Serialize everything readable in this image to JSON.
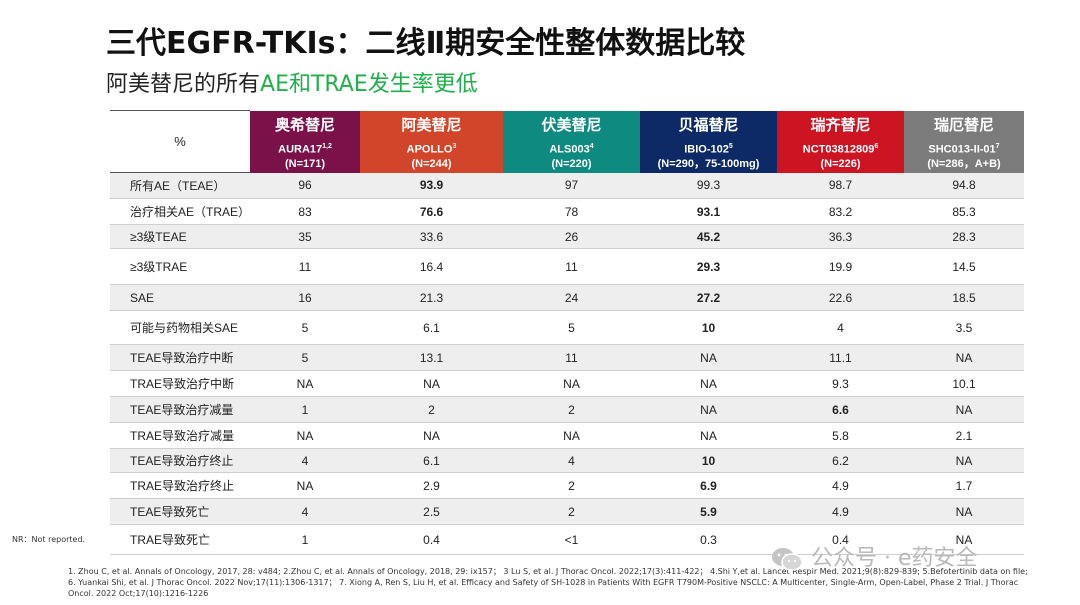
{
  "title": "三代EGFR-TKIs：二线Ⅱ期安全性整体数据比较",
  "subtitle_part1": "阿美替尼的所有",
  "subtitle_part2": "AE和TRAE发生率更低",
  "header": {
    "pct_label": "%",
    "drugs": [
      {
        "name": "奥希替尼",
        "trial": "AURA17",
        "sup": "1,2",
        "n": "(N=171)",
        "color": "#7a1149"
      },
      {
        "name": "阿美替尼",
        "trial": "APOLLO",
        "sup": "3",
        "n": "(N=244)",
        "color": "#d1452a"
      },
      {
        "name": "伏美替尼",
        "trial": "ALS003",
        "sup": "4",
        "n": "(N=220)",
        "color": "#0f8a80"
      },
      {
        "name": "贝福替尼",
        "trial": "IBIO-102",
        "sup": "5",
        "n": "(N=290，75-100mg)",
        "color": "#0e2a66"
      },
      {
        "name": "瑞齐替尼",
        "trial": "NCT03812809",
        "sup": "6",
        "n": "(N=226)",
        "color": "#cc1423"
      },
      {
        "name": "瑞厄替尼",
        "trial": "SHC013-II-01",
        "sup": "7",
        "n": "(N=286，A+B)",
        "color": "#7b7b7b"
      }
    ]
  },
  "rows": [
    {
      "label": "所有AE（TEAE）",
      "values": [
        "96",
        "93.9",
        "97",
        "99.3",
        "98.7",
        "94.8"
      ],
      "style": [
        "",
        "g",
        "",
        "",
        "",
        ""
      ]
    },
    {
      "label": "治疗相关AE（TRAE）",
      "values": [
        "83",
        "76.6",
        "78",
        "93.1",
        "83.2",
        "85.3"
      ],
      "style": [
        "",
        "g",
        "",
        "r",
        "",
        ""
      ]
    },
    {
      "label": "≥3级TEAE",
      "values": [
        "35",
        "33.6",
        "26",
        "45.2",
        "36.3",
        "28.3"
      ],
      "style": [
        "",
        "",
        "",
        "r",
        "",
        ""
      ]
    },
    {
      "label": "≥3级TRAE",
      "values": [
        "11",
        "16.4",
        "11",
        "29.3",
        "19.9",
        "14.5"
      ],
      "style": [
        "",
        "",
        "",
        "r",
        "",
        ""
      ]
    },
    {
      "label": "SAE",
      "values": [
        "16",
        "21.3",
        "24",
        "27.2",
        "22.6",
        "18.5"
      ],
      "style": [
        "",
        "",
        "",
        "r",
        "",
        ""
      ]
    },
    {
      "label": "可能与药物相关SAE",
      "values": [
        "5",
        "6.1",
        "5",
        "10",
        "4",
        "3.5"
      ],
      "style": [
        "",
        "",
        "",
        "r",
        "",
        ""
      ]
    },
    {
      "label": "TEAE导致治疗中断",
      "values": [
        "5",
        "13.1",
        "11",
        "NA",
        "11.1",
        "NA"
      ],
      "style": [
        "",
        "",
        "",
        "",
        "",
        ""
      ]
    },
    {
      "label": "TRAE导致治疗中断",
      "values": [
        "NA",
        "NA",
        "NA",
        "NA",
        "9.3",
        "10.1"
      ],
      "style": [
        "",
        "",
        "",
        "",
        "",
        ""
      ]
    },
    {
      "label": "TEAE导致治疗减量",
      "values": [
        "1",
        "2",
        "2",
        "NA",
        "6.6",
        "NA"
      ],
      "style": [
        "",
        "",
        "",
        "",
        "r",
        ""
      ]
    },
    {
      "label": "TRAE导致治疗减量",
      "values": [
        "NA",
        "NA",
        "NA",
        "NA",
        "5.8",
        "2.1"
      ],
      "style": [
        "",
        "",
        "",
        "",
        "",
        ""
      ]
    },
    {
      "label": "TEAE导致治疗终止",
      "values": [
        "4",
        "6.1",
        "4",
        "10",
        "6.2",
        "NA"
      ],
      "style": [
        "",
        "",
        "",
        "r",
        "",
        ""
      ]
    },
    {
      "label": "TRAE导致治疗终止",
      "values": [
        "NA",
        "2.9",
        "2",
        "6.9",
        "4.9",
        "1.7"
      ],
      "style": [
        "",
        "",
        "",
        "r",
        "",
        ""
      ]
    },
    {
      "label": "TEAE导致死亡",
      "values": [
        "4",
        "2.5",
        "2",
        "5.9",
        "4.9",
        "NA"
      ],
      "style": [
        "",
        "",
        "",
        "r",
        "",
        ""
      ]
    },
    {
      "label": "TRAE导致死亡",
      "values": [
        "1",
        "0.4",
        "<1",
        "0.3",
        "0.4",
        "NA"
      ],
      "style": [
        "",
        "",
        "",
        "",
        "",
        ""
      ]
    }
  ],
  "note": "NR：Not reported.",
  "references": "1. Zhou C, et al. Annals of Oncology, 2017, 28: v484; 2.Zhou C, et al.  Annals of Oncology, 2018, 29: ix157；  3 Lu S, et al. J Thorac Oncol. 2022;17(3):411-422；  4.Shi Y,et al. Lancet Respir Med. 2021;9(8):829-839; 5.Befotertinib data on file; 6. Yuankai Shi, et al. J Thorac Oncol. 2022 Nov;17(11):1306-1317；  7. Xiong A, Ren S, Liu H, et al. Efficacy and Safety of SH-1028 in Patients With EGFR T790M-Positive NSCLC: A Multicenter, Single-Arm, Open-Label, Phase 2 Trial. J Thorac Oncol. 2022 Oct;17(10):1216-1226",
  "watermark": "公众号 · e药安全",
  "colors": {
    "highlight_green": "#1aa34a",
    "highlight_red": "#e8141e",
    "subtitle_green": "#20b04a"
  }
}
